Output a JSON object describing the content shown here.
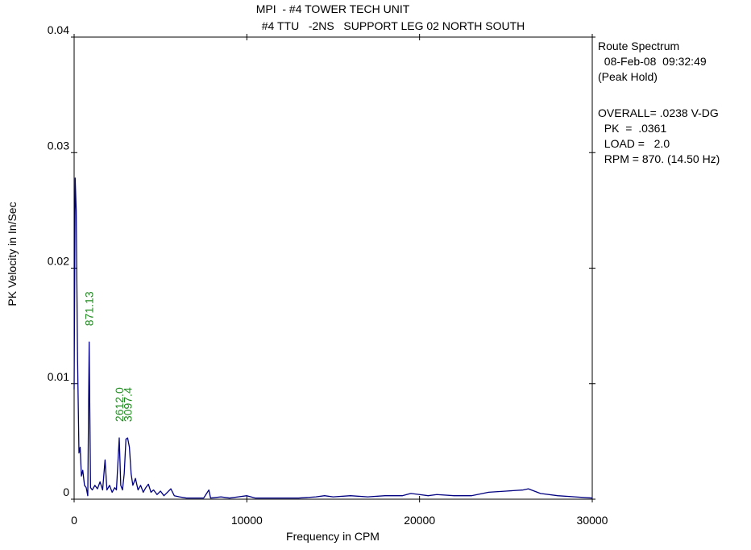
{
  "chart_data": {
    "type": "line",
    "title": "MPI  - #4 TOWER TECH UNIT",
    "subtitle": "#4 TTU   -2NS   SUPPORT LEG 02 NORTH SOUTH",
    "x_label": "Frequency in CPM",
    "y_label": "PK Velocity in In/Sec",
    "x": [
      0,
      60,
      120,
      200,
      280,
      350,
      420,
      500,
      600,
      700,
      790,
      871,
      950,
      1050,
      1200,
      1350,
      1500,
      1650,
      1790,
      1900,
      2050,
      2200,
      2350,
      2450,
      2612,
      2700,
      2800,
      2900,
      3000,
      3097,
      3200,
      3300,
      3400,
      3550,
      3700,
      3850,
      4000,
      4150,
      4300,
      4450,
      4600,
      4800,
      5000,
      5200,
      5400,
      5600,
      5800,
      6100,
      6500,
      7000,
      7500,
      7800,
      7900,
      8500,
      9000,
      9500,
      10000,
      10500,
      11000,
      12000,
      13000,
      14000,
      14500,
      15000,
      16000,
      17000,
      18000,
      19000,
      19500,
      20000,
      20500,
      21000,
      22000,
      23000,
      24000,
      25000,
      26000,
      26300,
      27000,
      28000,
      29000,
      30000
    ],
    "series": [
      {
        "name": "Route Spectrum",
        "color": "#000080",
        "values": [
          0.0095,
          0.0278,
          0.025,
          0.012,
          0.004,
          0.0045,
          0.002,
          0.0025,
          0.0012,
          0.001,
          0.0003,
          0.0136,
          0.001,
          0.0008,
          0.0012,
          0.0009,
          0.0015,
          0.0008,
          0.0034,
          0.0008,
          0.0012,
          0.0006,
          0.001,
          0.0008,
          0.0053,
          0.0012,
          0.0008,
          0.0022,
          0.0052,
          0.0053,
          0.0045,
          0.0022,
          0.0012,
          0.0018,
          0.0008,
          0.0012,
          0.0006,
          0.001,
          0.0013,
          0.0006,
          0.0008,
          0.0004,
          0.0007,
          0.0003,
          0.0006,
          0.0009,
          0.0003,
          0.0002,
          0.0001,
          0.0001,
          0.0001,
          0.0008,
          0.0001,
          0.0002,
          0.0001,
          0.0002,
          0.0003,
          0.0001,
          0.0001,
          0.0001,
          0.0001,
          0.0002,
          0.0003,
          0.0002,
          0.0003,
          0.0002,
          0.0003,
          0.0003,
          0.0005,
          0.0004,
          0.0003,
          0.0004,
          0.0003,
          0.0003,
          0.0006,
          0.0007,
          0.0008,
          0.0009,
          0.0005,
          0.0003,
          0.0002,
          0.0001
        ]
      }
    ],
    "xlim": [
      0,
      30000
    ],
    "xticks": [
      0,
      10000,
      20000,
      30000
    ],
    "ylim": [
      0,
      0.04
    ],
    "yticks": [
      0,
      0.01,
      0.02,
      0.03,
      0.04
    ],
    "annotations": [
      {
        "x": 871.13,
        "label": "871.13"
      },
      {
        "x": 2612.0,
        "label": "2612.0"
      },
      {
        "x": 3097.4,
        "label": "3097.4"
      }
    ],
    "annotation_color": "#228b22",
    "info": [
      [
        "Route Spectrum",
        "  08-Feb-08  09:32:49",
        "(Peak Hold)"
      ],
      [
        "OVERALL= .0238 V-DG",
        "  PK  =  .0361",
        "  LOAD =   2.0",
        "  RPM = 870. (14.50 Hz)"
      ]
    ]
  }
}
